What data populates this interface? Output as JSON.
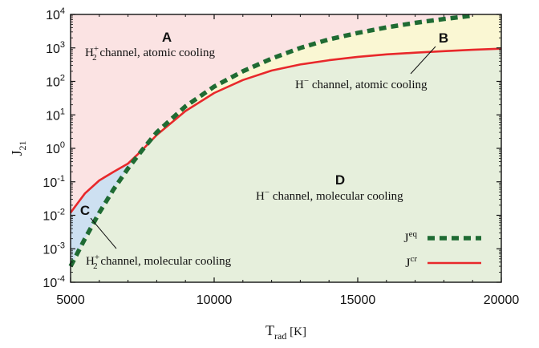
{
  "chart_data": {
    "type": "line",
    "xlabel": {
      "main": "T",
      "sub": "rad",
      "unit": "[K]"
    },
    "ylabel": {
      "main": "J",
      "sub": "21"
    },
    "xlim": [
      5000,
      20000
    ],
    "ylim_log10": [
      -4,
      4
    ],
    "y_scale": "log",
    "xticks": [
      {
        "value": 5000,
        "label": "5000"
      },
      {
        "value": 10000,
        "label": "10000"
      },
      {
        "value": 15000,
        "label": "15000"
      },
      {
        "value": 20000,
        "label": "20000"
      }
    ],
    "yticks": [
      {
        "exp": 4,
        "label": "4"
      },
      {
        "exp": 3,
        "label": "3"
      },
      {
        "exp": 2,
        "label": "2"
      },
      {
        "exp": 1,
        "label": "1"
      },
      {
        "exp": 0,
        "label": "0"
      },
      {
        "exp": -1,
        "label": "-1"
      },
      {
        "exp": -2,
        "label": "-2"
      },
      {
        "exp": -3,
        "label": "-3"
      },
      {
        "exp": -4,
        "label": "-4"
      }
    ],
    "ytick_base": "10",
    "legend_position": "bottom-right",
    "series": [
      {
        "name": "J^eq",
        "name_main": "J",
        "name_sup": "eq",
        "color": "#1f6b33",
        "style": "dashed-thick",
        "points": [
          [
            5000,
            0.0003
          ],
          [
            5500,
            0.002
          ],
          [
            6000,
            0.012
          ],
          [
            6500,
            0.06
          ],
          [
            7000,
            0.25
          ],
          [
            7500,
            0.9
          ],
          [
            8000,
            3
          ],
          [
            9000,
            18
          ],
          [
            10000,
            70
          ],
          [
            11000,
            200
          ],
          [
            12000,
            480
          ],
          [
            13000,
            1000
          ],
          [
            14000,
            1800
          ],
          [
            15000,
            2800
          ],
          [
            16000,
            4100
          ],
          [
            17000,
            5600
          ],
          [
            18000,
            7300
          ],
          [
            19000,
            9200
          ]
        ]
      },
      {
        "name": "J^cr",
        "name_main": "J",
        "name_sup": "cr",
        "color": "#e8282b",
        "style": "solid",
        "points": [
          [
            5000,
            0.012
          ],
          [
            5500,
            0.045
          ],
          [
            6000,
            0.11
          ],
          [
            6500,
            0.2
          ],
          [
            7000,
            0.35
          ],
          [
            7500,
            0.9
          ],
          [
            8000,
            2.5
          ],
          [
            9000,
            13
          ],
          [
            10000,
            45
          ],
          [
            11000,
            110
          ],
          [
            12000,
            210
          ],
          [
            13000,
            320
          ],
          [
            14000,
            430
          ],
          [
            15000,
            540
          ],
          [
            16000,
            640
          ],
          [
            17000,
            720
          ],
          [
            18000,
            800
          ],
          [
            19000,
            880
          ],
          [
            20000,
            950
          ]
        ]
      }
    ],
    "regions": [
      {
        "letter": "A",
        "label_base": "H",
        "label_sub": "2",
        "label_sup": "+",
        "label_rest": " channel, atomic cooling",
        "fill": "#fbe3e3"
      },
      {
        "letter": "B",
        "label_base": "H",
        "label_sub": "",
        "label_sup": "−",
        "label_rest": " channel, atomic cooling",
        "fill": "#faf7d3"
      },
      {
        "letter": "C",
        "label_base": "H",
        "label_sub": "2",
        "label_sup": "+",
        "label_rest": " channel, molecular cooling",
        "fill": "#cde0f1"
      },
      {
        "letter": "D",
        "label_base": "H",
        "label_sub": "",
        "label_sup": "−",
        "label_rest": " channel, molecular cooling",
        "fill": "#e6efdc"
      }
    ]
  }
}
